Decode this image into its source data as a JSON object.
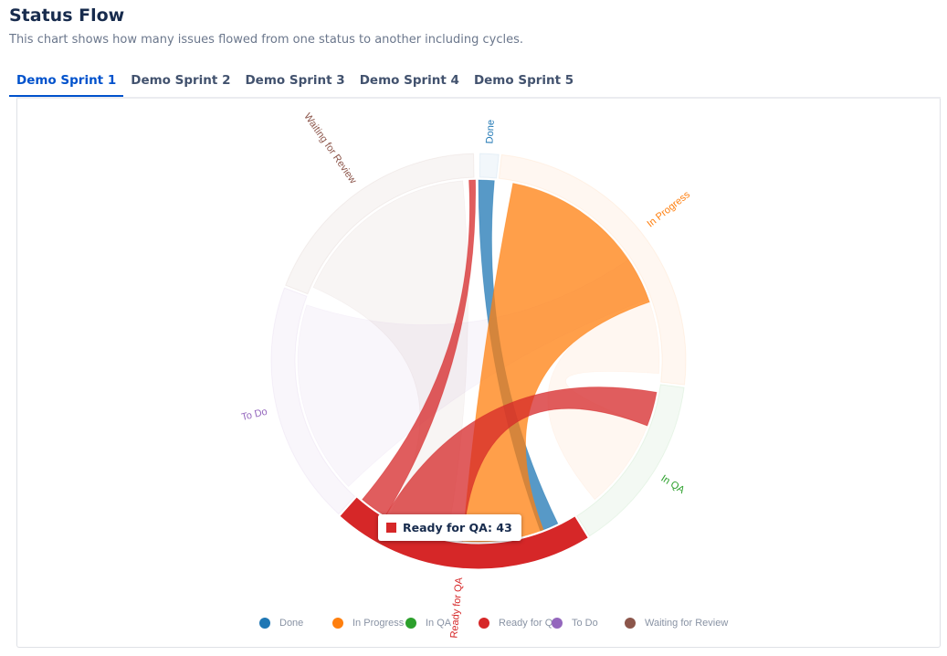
{
  "header": {
    "title": "Status Flow",
    "subtitle": "This chart shows how many issues flowed from one status to another including cycles."
  },
  "tabs": [
    {
      "label": "Demo Sprint 1",
      "active": true
    },
    {
      "label": "Demo Sprint 2",
      "active": false
    },
    {
      "label": "Demo Sprint 3",
      "active": false
    },
    {
      "label": "Demo Sprint 4",
      "active": false
    },
    {
      "label": "Demo Sprint 5",
      "active": false
    }
  ],
  "tooltip": {
    "text": "Ready for QA: 43",
    "color": "#d62728"
  },
  "legend": [
    {
      "label": "Done",
      "color": "#1f77b4"
    },
    {
      "label": "In Progress",
      "color": "#ff7f0e"
    },
    {
      "label": "In QA",
      "color": "#2ca02c"
    },
    {
      "label": "Ready for QA",
      "color": "#d62728"
    },
    {
      "label": "To Do",
      "color": "#9467bd"
    },
    {
      "label": "Waiting for Review",
      "color": "#8c564b"
    }
  ],
  "chart_data": {
    "type": "chord",
    "title": "",
    "statuses": [
      "Done",
      "In Progress",
      "In QA",
      "Ready for QA",
      "To Do",
      "Waiting for Review"
    ],
    "colors": [
      "#1f77b4",
      "#ff7f0e",
      "#2ca02c",
      "#d62728",
      "#9467bd",
      "#8c564b"
    ],
    "highlighted": "Ready for QA",
    "highlighted_value": 43,
    "groups": [
      {
        "name": "Done",
        "start_deg": 0,
        "end_deg": 6
      },
      {
        "name": "In Progress",
        "start_deg": 6,
        "end_deg": 97
      },
      {
        "name": "In QA",
        "start_deg": 97,
        "end_deg": 148
      },
      {
        "name": "Ready for QA",
        "start_deg": 148,
        "end_deg": 222
      },
      {
        "name": "To Do",
        "start_deg": 222,
        "end_deg": 291
      },
      {
        "name": "Waiting for Review",
        "start_deg": 291,
        "end_deg": 359
      }
    ],
    "ribbons": [
      {
        "source": "Done",
        "s": [
          0,
          5
        ],
        "target": "Ready for QA",
        "t": [
          154,
          160
        ],
        "color": "#1f77b4"
      },
      {
        "source": "In Progress",
        "s": [
          11,
          71
        ],
        "target": "Ready for QA",
        "t": [
          159,
          185
        ],
        "color": "#ff7f0e"
      },
      {
        "source": "Ready for QA",
        "s": [
          185,
          211
        ],
        "target": "In QA",
        "t": [
          100,
          111
        ],
        "color": "#d62728"
      },
      {
        "source": "Ready for QA",
        "s": [
          211,
          220
        ],
        "target": "Waiting for Review",
        "t": [
          357,
          359
        ],
        "color": "#d62728"
      },
      {
        "source": "In Progress",
        "s": [
          71,
          94
        ],
        "target": "In QA",
        "t": [
          111,
          140
        ],
        "color": "#ff7f0e",
        "faded": true
      },
      {
        "source": "To Do",
        "s": [
          226,
          288
        ],
        "target": "In Progress",
        "t": [
          56,
          70
        ],
        "color": "#9467bd",
        "faded": true
      },
      {
        "source": "Waiting for Review",
        "s": [
          294,
          355
        ],
        "target": "Ready for QA",
        "t": [
          190,
          210
        ],
        "color": "#8c564b",
        "faded": true
      }
    ]
  }
}
